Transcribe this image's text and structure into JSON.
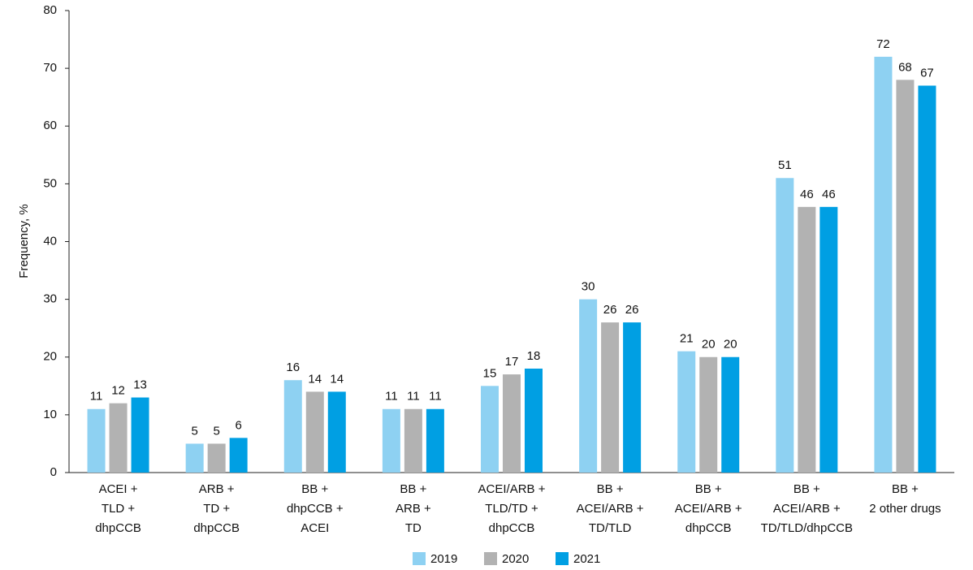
{
  "chart_data": {
    "type": "bar",
    "y_label": "Frequency, %",
    "categories": [
      [
        "ACEI +",
        "TLD +",
        "dhpCCB"
      ],
      [
        "ARB +",
        "TD +",
        "dhpCCB"
      ],
      [
        "BB +",
        "dhpCCB +",
        "ACEI"
      ],
      [
        "BB +",
        "ARB +",
        "TD"
      ],
      [
        "ACEI/ARB +",
        "TLD/TD +",
        "dhpCCB"
      ],
      [
        "BB +",
        "ACEI/ARB +",
        "TD/TLD"
      ],
      [
        "BB +",
        "ACEI/ARB +",
        "dhpCCB"
      ],
      [
        "BB +",
        "ACEI/ARB +",
        "TD/TLD/dhpCCB"
      ],
      [
        "BB +",
        "2 other drugs"
      ]
    ],
    "series": [
      {
        "name": "2019",
        "color": "#8ed1f2",
        "values": [
          11,
          5,
          16,
          11,
          15,
          30,
          21,
          51,
          72
        ]
      },
      {
        "name": "2020",
        "color": "#b2b2b2",
        "values": [
          12,
          5,
          14,
          11,
          17,
          26,
          20,
          46,
          68
        ]
      },
      {
        "name": "2021",
        "color": "#009fe3",
        "values": [
          13,
          6,
          14,
          11,
          18,
          26,
          20,
          46,
          67
        ]
      }
    ],
    "ylim": [
      0,
      80
    ],
    "yticks": [
      0,
      10,
      20,
      30,
      40,
      50,
      60,
      70,
      80
    ],
    "grid": false
  }
}
